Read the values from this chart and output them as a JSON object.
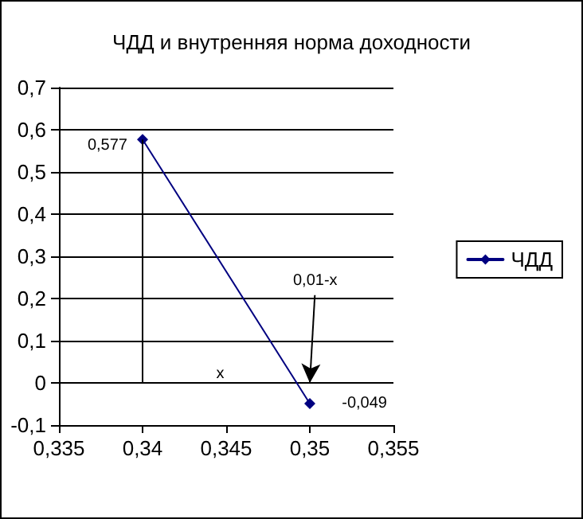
{
  "chart_data": {
    "type": "line",
    "title": "ЧДД и внутренняя норма доходности",
    "x": [
      0.34,
      0.35
    ],
    "series": [
      {
        "name": "ЧДД",
        "color": "#000080",
        "values": [
          0.577,
          -0.049
        ]
      }
    ],
    "value_labels": [
      "0,577",
      "-0,049"
    ],
    "xlim": [
      0.335,
      0.355
    ],
    "xticks": [
      {
        "value": 0.335,
        "label": "0,335"
      },
      {
        "value": 0.34,
        "label": "0,34"
      },
      {
        "value": 0.345,
        "label": "0,345"
      },
      {
        "value": 0.35,
        "label": "0,35"
      },
      {
        "value": 0.355,
        "label": "0,355"
      }
    ],
    "ylim": [
      -0.1,
      0.7
    ],
    "yticks": [
      {
        "value": -0.1,
        "label": "-0,1"
      },
      {
        "value": 0,
        "label": "0"
      },
      {
        "value": 0.1,
        "label": "0,1"
      },
      {
        "value": 0.2,
        "label": "0,2"
      },
      {
        "value": 0.3,
        "label": "0,3"
      },
      {
        "value": 0.4,
        "label": "0,4"
      },
      {
        "value": 0.5,
        "label": "0,5"
      },
      {
        "value": 0.6,
        "label": "0,6"
      },
      {
        "value": 0.7,
        "label": "0,7"
      }
    ],
    "ref_lines": [
      {
        "axis": "x",
        "value": 0.34
      }
    ],
    "annotations": [
      "0,01-x",
      "x"
    ],
    "grid": "y",
    "legend": "right",
    "marker": "diamond",
    "line_style": "solid"
  }
}
